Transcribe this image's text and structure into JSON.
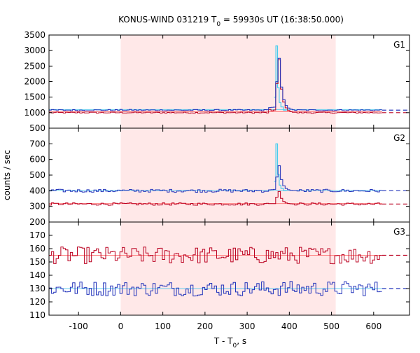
{
  "chart_data": {
    "type": "line",
    "title_prefix": "KONUS-WIND 031219 T",
    "title_subscript": "0",
    "title_suffix": " = 59930s UT (16:38:50.000)",
    "xlabel_prefix": "T - T",
    "xlabel_subscript": "0",
    "xlabel_suffix": ", s",
    "ylabel": "counts / sec",
    "xlim": [
      -170,
      685
    ],
    "x_ticks": [
      -100,
      0,
      100,
      200,
      300,
      400,
      500,
      600
    ],
    "x_tick_labels": [
      "-100",
      "0",
      "100",
      "200",
      "300",
      "400",
      "500",
      "600"
    ],
    "highlight_interval": [
      0,
      510
    ],
    "highlight_color": "#ffe8e8",
    "colors": {
      "red_series": "#bb0020",
      "blue_series": "#2233bb",
      "cyan_series": "#44ccee",
      "red_background": "#ff8080",
      "blue_background": "#66ccee"
    },
    "panels": [
      {
        "name": "G1",
        "ylim": [
          500,
          3500
        ],
        "y_ticks": [
          500,
          1000,
          1500,
          2000,
          2500,
          3000,
          3500
        ],
        "y_tick_labels": [
          "500",
          "1000",
          "1500",
          "2000",
          "2500",
          "3000",
          "3500"
        ],
        "red_level": 1000,
        "blue_level": 1080,
        "red_bg_level": 1030,
        "blue_bg_level": 1100,
        "noise_red": 12,
        "noise_blue": 14,
        "peak_x": 370,
        "peak_red": 2700,
        "peak_blue": 2750,
        "peak_cyan": 3150
      },
      {
        "name": "G2",
        "ylim": [
          200,
          800
        ],
        "y_ticks": [
          200,
          300,
          400,
          500,
          600,
          700
        ],
        "y_tick_labels": [
          "200",
          "300",
          "400",
          "500",
          "600",
          "700"
        ],
        "red_level": 315,
        "blue_level": 400,
        "red_bg_level": 318,
        "blue_bg_level": 402,
        "noise_red": 5,
        "noise_blue": 6,
        "peak_x": 370,
        "peak_red": 395,
        "peak_blue": 560,
        "peak_cyan": 700
      },
      {
        "name": "G3",
        "ylim": [
          110,
          180
        ],
        "y_ticks": [
          110,
          120,
          130,
          140,
          150,
          160,
          170
        ],
        "y_tick_labels": [
          "110",
          "120",
          "130",
          "140",
          "150",
          "160",
          "170"
        ],
        "red_level": 155,
        "blue_level": 130,
        "red_bg_level": 155,
        "blue_bg_level": 130,
        "noise_red": 4,
        "noise_blue": 3.5
      }
    ],
    "series_x_range": [
      -170,
      620
    ]
  }
}
